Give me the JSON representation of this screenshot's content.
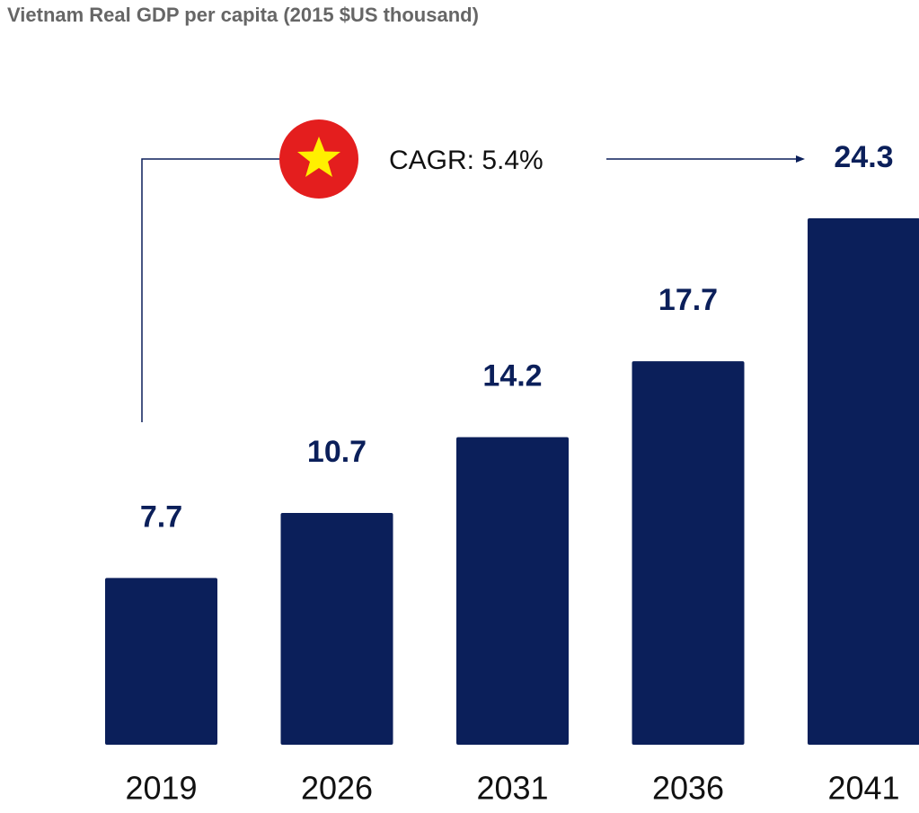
{
  "chart_data": {
    "type": "bar",
    "title": "Vietnam Real GDP per capita (2015 $US thousand)",
    "categories": [
      "2019",
      "2026",
      "2031",
      "2036",
      "2041"
    ],
    "values": [
      7.7,
      10.7,
      14.2,
      17.7,
      24.3
    ],
    "color": "#0b1f5a",
    "annotation": "CAGR: 5.4%"
  }
}
